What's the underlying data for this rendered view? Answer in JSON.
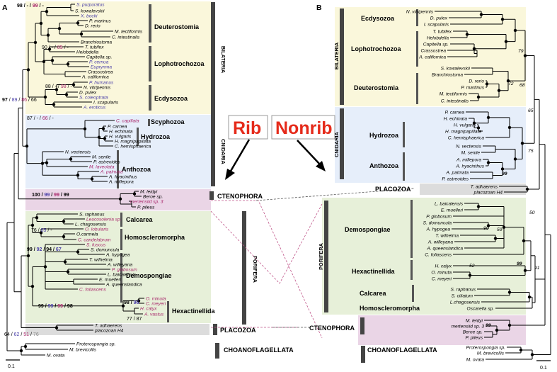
{
  "panels": {
    "a": "A",
    "b": "B"
  },
  "labels": {
    "rib": "Rib",
    "nonrib": "Nonrib"
  },
  "scale": {
    "a": "0.1",
    "b": "0.1"
  },
  "colors": {
    "bilateria": "#faf7db",
    "cnidaria": "#e6eefa",
    "ctenophora": "#ead5e6",
    "porifera": "#e7f0d9",
    "placozoa": "#dcdcdc",
    "blue": "#4a3fa8",
    "magenta": "#a8276b",
    "red": "#e52a1a"
  },
  "a": {
    "clades": {
      "bilateria": "BILATERIA",
      "cnidaria": "CNIDARIA",
      "porifera": "PORIFERA",
      "deuterostomia": "Deuterostomia",
      "lophotrochozoa": "Lophotrochozoa",
      "ecdysozoa": "Ecdysozoa",
      "scyphozoa": "Scyphozoa",
      "hydrozoa": "Hydrozoa",
      "anthozoa": "Anthozoa",
      "ctenophora": "CTENOPHORA",
      "calcarea": "Calcarea",
      "homoscleromorpha": "Homoscleromorpha",
      "demospongiae": "Demospongiae",
      "hexactinellida": "Hexactinellida",
      "placozoa": "PLACOZOA",
      "choanoflagellata": "CHOANOFLAGELLATA"
    },
    "support": {
      "s1": [
        "98",
        "-",
        "99",
        "-"
      ],
      "s2": [
        "90",
        "-",
        "85",
        "-"
      ],
      "s3": [
        "88",
        "-",
        "98",
        "-"
      ],
      "s4": [
        "97",
        "89",
        "86",
        "66"
      ],
      "s5": [
        "87",
        "-",
        "66",
        "-"
      ],
      "s6": [
        "100",
        "99",
        "99",
        "99"
      ],
      "s7": [
        "76",
        "85",
        "-"
      ],
      "s8": [
        "99",
        "92",
        "94",
        "67"
      ],
      "s9": [
        "99",
        "99",
        "99",
        "98"
      ],
      "s10": [
        "98",
        "96"
      ],
      "s11": [
        "77",
        "87"
      ],
      "s12": [
        "64",
        "62",
        "51",
        "76"
      ]
    },
    "taxa": [
      {
        "name": "S. purpuratus",
        "c": "blue"
      },
      {
        "name": "S. kowalevskii",
        "c": "black"
      },
      {
        "name": "X. bocki",
        "c": "blue"
      },
      {
        "name": "P. marinus",
        "c": "black"
      },
      {
        "name": "D. rerio",
        "c": "black"
      },
      {
        "name": "M. tectiformis",
        "c": "black"
      },
      {
        "name": "C. intestinalis",
        "c": "black"
      },
      {
        "name": "Branchiostoma",
        "c": "black"
      },
      {
        "name": "T. tubifex",
        "c": "black"
      },
      {
        "name": "Helobdella",
        "c": "black"
      },
      {
        "name": "Capitella sp.",
        "c": "black"
      },
      {
        "name": "P. cernua",
        "c": "blue"
      },
      {
        "name": "Euprymna",
        "c": "blue"
      },
      {
        "name": "Crassostrea",
        "c": "black"
      },
      {
        "name": "A. californica",
        "c": "black"
      },
      {
        "name": "P. humanus",
        "c": "blue"
      },
      {
        "name": "N. vitripennis",
        "c": "black"
      },
      {
        "name": "D. pulex",
        "c": "black"
      },
      {
        "name": "S. coleoptrata",
        "c": "blue"
      },
      {
        "name": "I. scapularis",
        "c": "black"
      },
      {
        "name": "A. eroticus",
        "c": "blue"
      },
      {
        "name": "C. capillata",
        "c": "magenta"
      },
      {
        "name": "P. carnea",
        "c": "black"
      },
      {
        "name": "H. echinata",
        "c": "black"
      },
      {
        "name": "H. vulgaris",
        "c": "black"
      },
      {
        "name": "H. magnipapillata",
        "c": "black"
      },
      {
        "name": "C. hemisphaerica",
        "c": "black"
      },
      {
        "name": "N. vectensis",
        "c": "black"
      },
      {
        "name": "M. senile",
        "c": "black"
      },
      {
        "name": "P. astreoides",
        "c": "black"
      },
      {
        "name": "M. laveolata",
        "c": "magenta"
      },
      {
        "name": "A. palmata",
        "c": "magenta"
      },
      {
        "name": "A. hyacinthus",
        "c": "black"
      },
      {
        "name": "A. millepora",
        "c": "black"
      },
      {
        "name": "M. leidyi",
        "c": "black"
      },
      {
        "name": "Beroe sp.",
        "c": "black"
      },
      {
        "name": "mertensiid sp. 3",
        "c": "magenta"
      },
      {
        "name": "P. pileus",
        "c": "black"
      },
      {
        "name": "S. raphanus",
        "c": "black"
      },
      {
        "name": "Leucosolenia sp.",
        "c": "magenta"
      },
      {
        "name": "L. chagosensis",
        "c": "black"
      },
      {
        "name": "O. lobularis",
        "c": "magenta"
      },
      {
        "name": "O.carmela",
        "c": "black"
      },
      {
        "name": "C. candelabrum",
        "c": "magenta"
      },
      {
        "name": "S. fuscus",
        "c": "magenta"
      },
      {
        "name": "S. domuncula",
        "c": "black"
      },
      {
        "name": "A. hypogea",
        "c": "black"
      },
      {
        "name": "T. wilhelma",
        "c": "black"
      },
      {
        "name": "A. willeyana",
        "c": "black"
      },
      {
        "name": "P. globosum",
        "c": "magenta"
      },
      {
        "name": "L. baicalensis",
        "c": "black"
      },
      {
        "name": "E. muelleri",
        "c": "black"
      },
      {
        "name": "A. queenslandica",
        "c": "black"
      },
      {
        "name": "C. foliascens",
        "c": "magenta"
      },
      {
        "name": "O. minuta",
        "c": "magenta"
      },
      {
        "name": "C. meyeri",
        "c": "magenta"
      },
      {
        "name": "H. calyx",
        "c": "magenta"
      },
      {
        "name": "A. vastus",
        "c": "magenta"
      },
      {
        "name": "T. adhaerens",
        "c": "black"
      },
      {
        "name": "placozoan H4",
        "c": "black"
      },
      {
        "name": "Proterospongia sp.",
        "c": "black"
      },
      {
        "name": "M. brevicollis",
        "c": "black"
      },
      {
        "name": "M. ovata",
        "c": "black"
      }
    ]
  },
  "b": {
    "clades": {
      "bilateria": "BILATERIA",
      "ecdysozoa": "Ecdysozoa",
      "lophotrochozoa": "Lophotrochozoa",
      "deuterostomia": "Deuterostomia",
      "cnidaria": "CNIDARIA",
      "hydrozoa": "Hydrozoa",
      "anthozoa": "Anthozoa",
      "placozoa": "PLACOZOA",
      "porifera": "PORIFERA",
      "demospongiae": "Demospongiae",
      "hexactinellida": "Hexactinellida",
      "calcarea": "Calcarea",
      "homoscleromorpha": "Homoscleromorpha",
      "ctenophora": "CTENOPHORA",
      "choanoflagellata": "CHOANOFLAGELLATA"
    },
    "support": {
      "s79": "79",
      "s72": "72",
      "s68": "68",
      "s65": "65",
      "s75": "75",
      "s99a": "99",
      "s50": "50",
      "s90": "90",
      "s59": "59",
      "s99b": "99",
      "s52": "52",
      "s91": "91",
      "s99c": "99"
    },
    "taxa": [
      "N. vitripennis",
      "D. pulex",
      "I. scapularis",
      "T. tubifex",
      "Helobdella",
      "Capitella sp.",
      "Crassostrea",
      "A. californica",
      "S. kowalevskii",
      "Branchiostoma",
      "D. rerio",
      "P. martinus",
      "M. tectiformis",
      "C. intestinalis",
      "P. carnea",
      "H. echinata",
      "H. vulgaris",
      "H. magnipapillata",
      "C. hemisphaerica",
      "N. vectensis",
      "M. senile",
      "A. millepora",
      "A. hyacinthus",
      "A. palmata",
      "P. astreoides",
      "T. adhaerens",
      "placozoan H4",
      "L. baicalensis",
      "E. muelleri",
      "P. globosum",
      "S. domuncula",
      "A. hypogea",
      "T. wilhelma",
      "A. willeyana",
      "A. queenslandica",
      "C. foliascens",
      "H. calyx",
      "O. minuta",
      "C. meyeri",
      "S. raphanus",
      "S. ciliatum",
      "L.chagosensis",
      "Oscarella sp.",
      "M. leidyi",
      "mertensiid sp. 3",
      "Beroe sp.",
      "P. pileus",
      "Proterospongia sp.",
      "M. brevicollis",
      "M. ovata"
    ]
  }
}
